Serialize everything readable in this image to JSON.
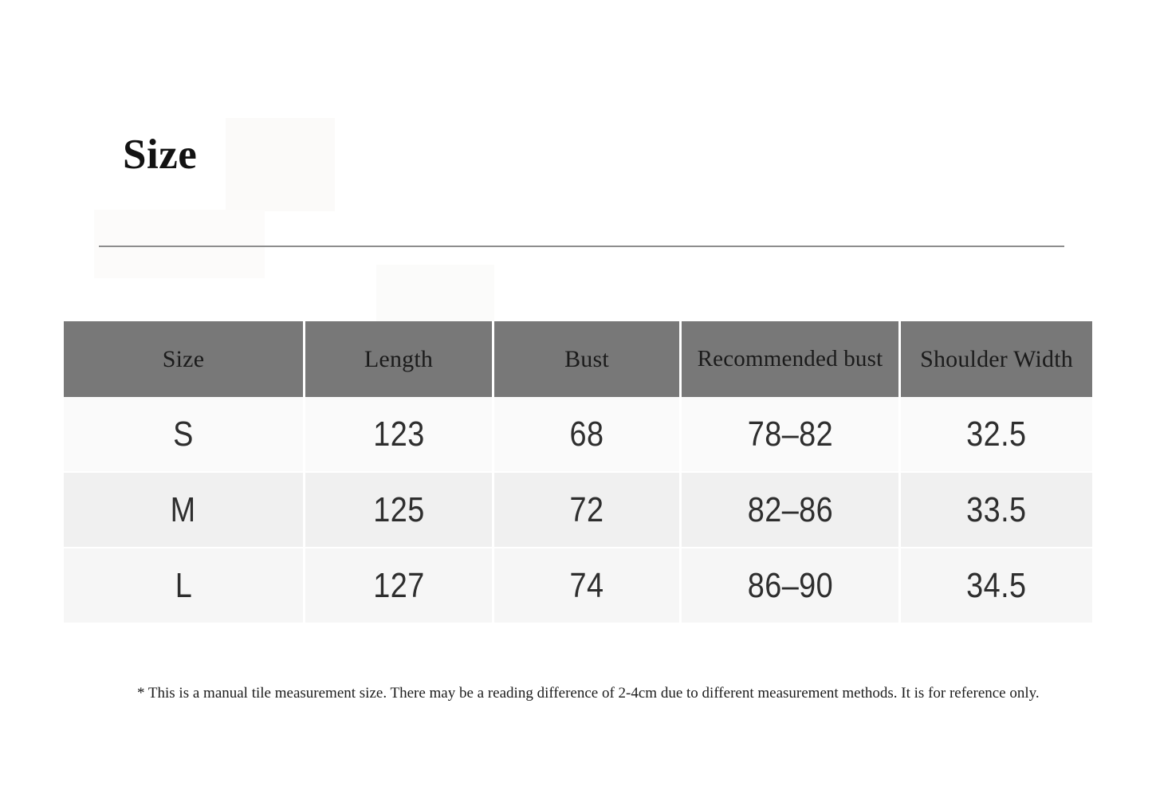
{
  "title": {
    "text": "Size"
  },
  "table": {
    "headers": [
      "Size",
      "Length",
      "Bust",
      "Recommended bust",
      "Shoulder Width"
    ],
    "rows": [
      [
        "S",
        "123",
        "68",
        "78–82",
        "32.5"
      ],
      [
        "M",
        "125",
        "72",
        "82–86",
        "33.5"
      ],
      [
        "L",
        "127",
        "74",
        "86–90",
        "34.5"
      ]
    ]
  },
  "footnote": {
    "text": "* This is a manual tile measurement size. There may be a reading difference of 2-4cm due to different measurement methods. It is for reference only."
  },
  "colors": {
    "header_bg": "#787878",
    "header_text": "#1b1b1b",
    "row_odd": "#fafafa",
    "row_even": "#f0f0f0",
    "row_third": "#f6f6f6",
    "value_text": "#2e2e2e",
    "divider": "#8d8d8d",
    "page_bg": "#ffffff"
  }
}
